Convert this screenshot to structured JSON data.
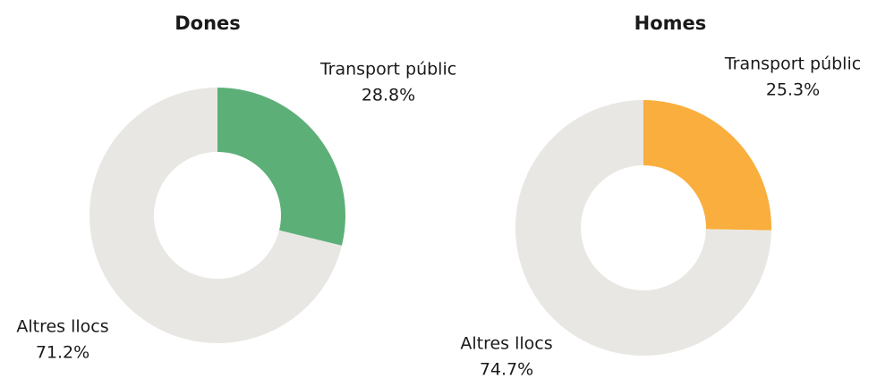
{
  "chart_data": [
    {
      "type": "donut",
      "title": "Dones",
      "categories": [
        "Transport públic",
        "Altres llocs"
      ],
      "values": [
        28.8,
        71.2
      ],
      "value_labels": [
        "28.8%",
        "71.2%"
      ],
      "colors": [
        "#5daf78",
        "#e9e7e3"
      ]
    },
    {
      "type": "donut",
      "title": "Homes",
      "categories": [
        "Transport públic",
        "Altres llocs"
      ],
      "values": [
        25.3,
        74.7
      ],
      "value_labels": [
        "25.3%",
        "74.7%"
      ],
      "colors": [
        "#f9ae3d",
        "#e9e7e3"
      ]
    }
  ]
}
